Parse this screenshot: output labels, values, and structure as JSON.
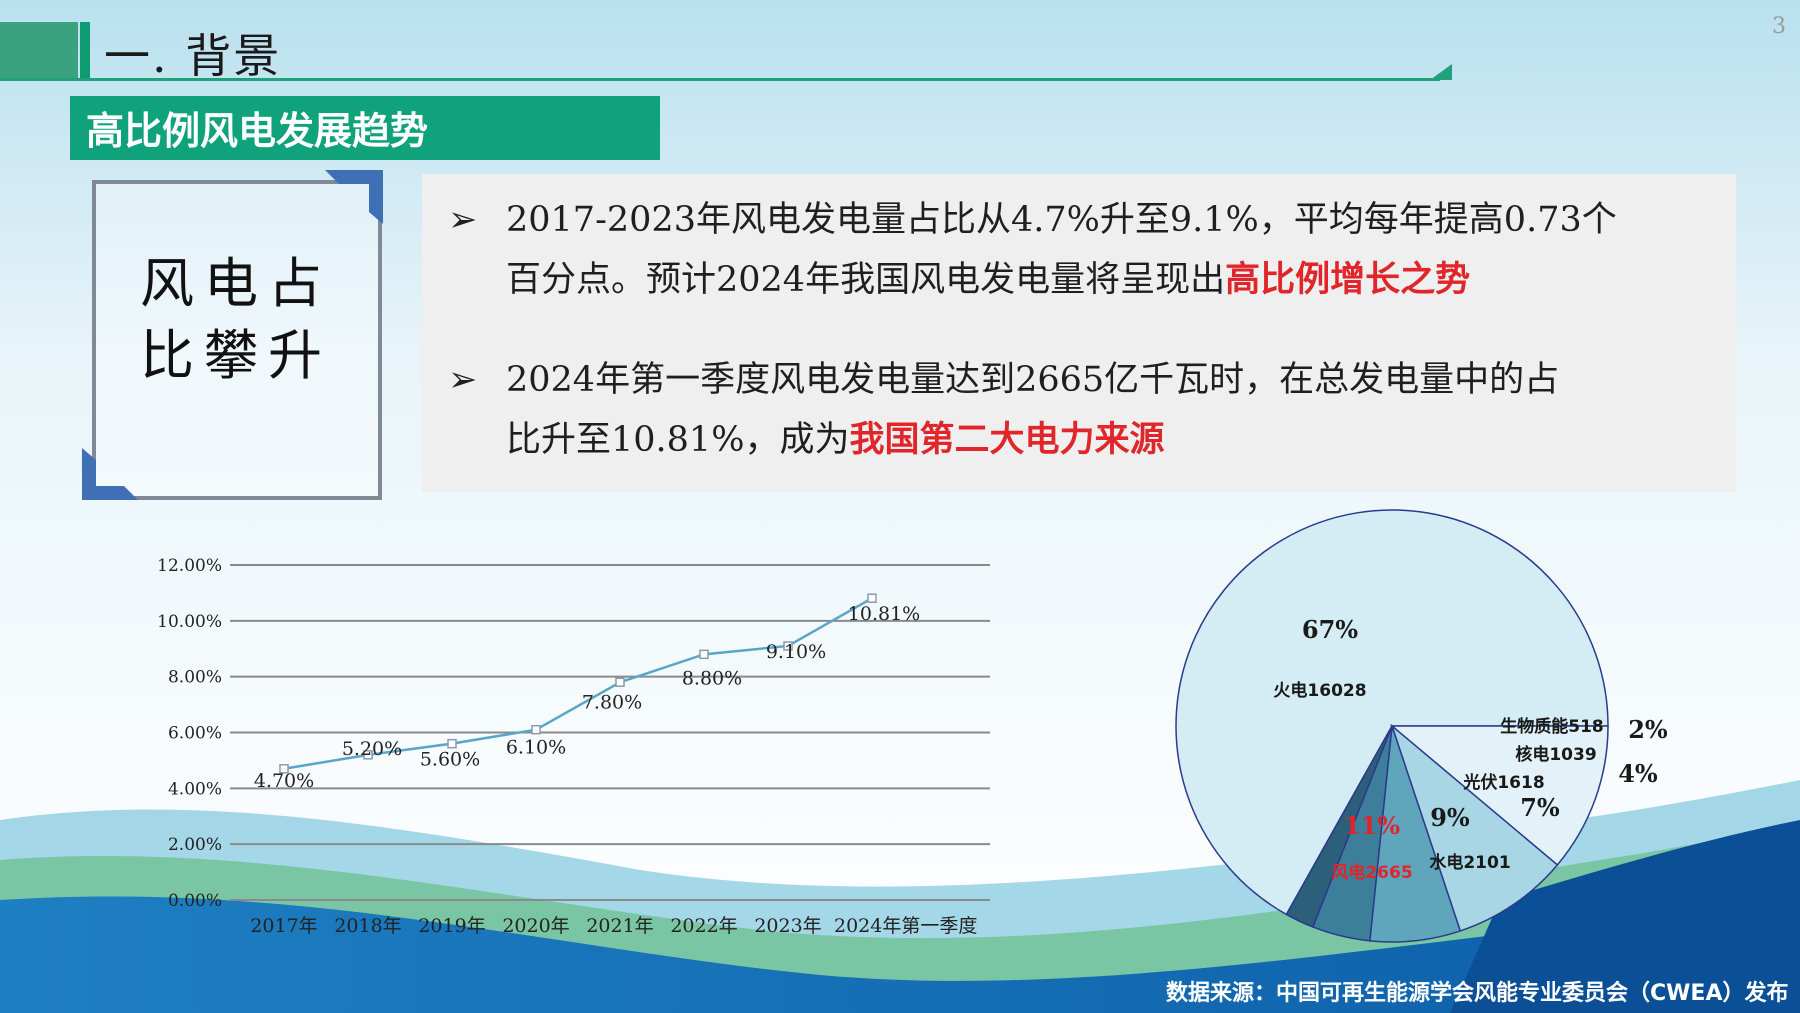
{
  "slide": {
    "page_number": "3",
    "title": "一. 背景",
    "subtitle": "高比例风电发展趋势"
  },
  "frame": {
    "line1": "风电占",
    "line2": "比攀升"
  },
  "bullets": [
    {
      "arrow": "➢",
      "line1": "2017-2023年风电发电量占比从4.7%升至9.1%，平均每年提高0.73个",
      "line2_plain": "百分点。预计2024年我国风电发电量将呈现出",
      "line2_highlight": "高比例增长之势"
    },
    {
      "arrow": "➢",
      "line1": "2024年第一季度风电发电量达到2665亿千瓦时，在总发电量中的占",
      "line2_plain": "比升至10.81%，成为",
      "line2_highlight": "我国第二大电力来源"
    }
  ],
  "source": "数据来源：中国可再生能源学会风能专业委员会（CWEA）发布",
  "colors": {
    "accent_green": "#10a27a",
    "highlight_red": "#e0262a",
    "line": "#5aa6c8",
    "pie_edge": "#2b3a8c"
  },
  "chart_data": [
    {
      "type": "line",
      "categories": [
        "2017年",
        "2018年",
        "2019年",
        "2020年",
        "2021年",
        "2022年",
        "2023年",
        "2024年第一季度"
      ],
      "values": [
        4.7,
        5.2,
        5.6,
        6.1,
        7.8,
        8.8,
        9.1,
        10.81
      ],
      "value_labels": [
        "4.70%",
        "5.20%",
        "5.60%",
        "6.10%",
        "7.80%",
        "8.80%",
        "9.10%",
        "10.81%"
      ],
      "y_ticks": [
        "0.00%",
        "2.00%",
        "4.00%",
        "6.00%",
        "8.00%",
        "10.00%",
        "12.00%"
      ],
      "ylim": [
        0,
        12
      ],
      "grid": true,
      "xlabel": "",
      "ylabel": "",
      "title": ""
    },
    {
      "type": "pie",
      "slices": [
        {
          "label": "火电16028",
          "value": 16028,
          "percent": "67%",
          "color": "#d4ecf4"
        },
        {
          "label": "风电2665",
          "value": 2665,
          "percent": "11%",
          "color": "#e2f2f8",
          "label_color": "#e0262a"
        },
        {
          "label": "水电2101",
          "value": 2101,
          "percent": "9%",
          "color": "#a9d6e5"
        },
        {
          "label": "光伏1618",
          "value": 1618,
          "percent": "7%",
          "color": "#5fa6bd"
        },
        {
          "label": "核电1039",
          "value": 1039,
          "percent": "4%",
          "color": "#3d7f9a"
        },
        {
          "label": "生物质能518",
          "value": 518,
          "percent": "2%",
          "color": "#2c5f7a"
        }
      ],
      "title": ""
    }
  ]
}
